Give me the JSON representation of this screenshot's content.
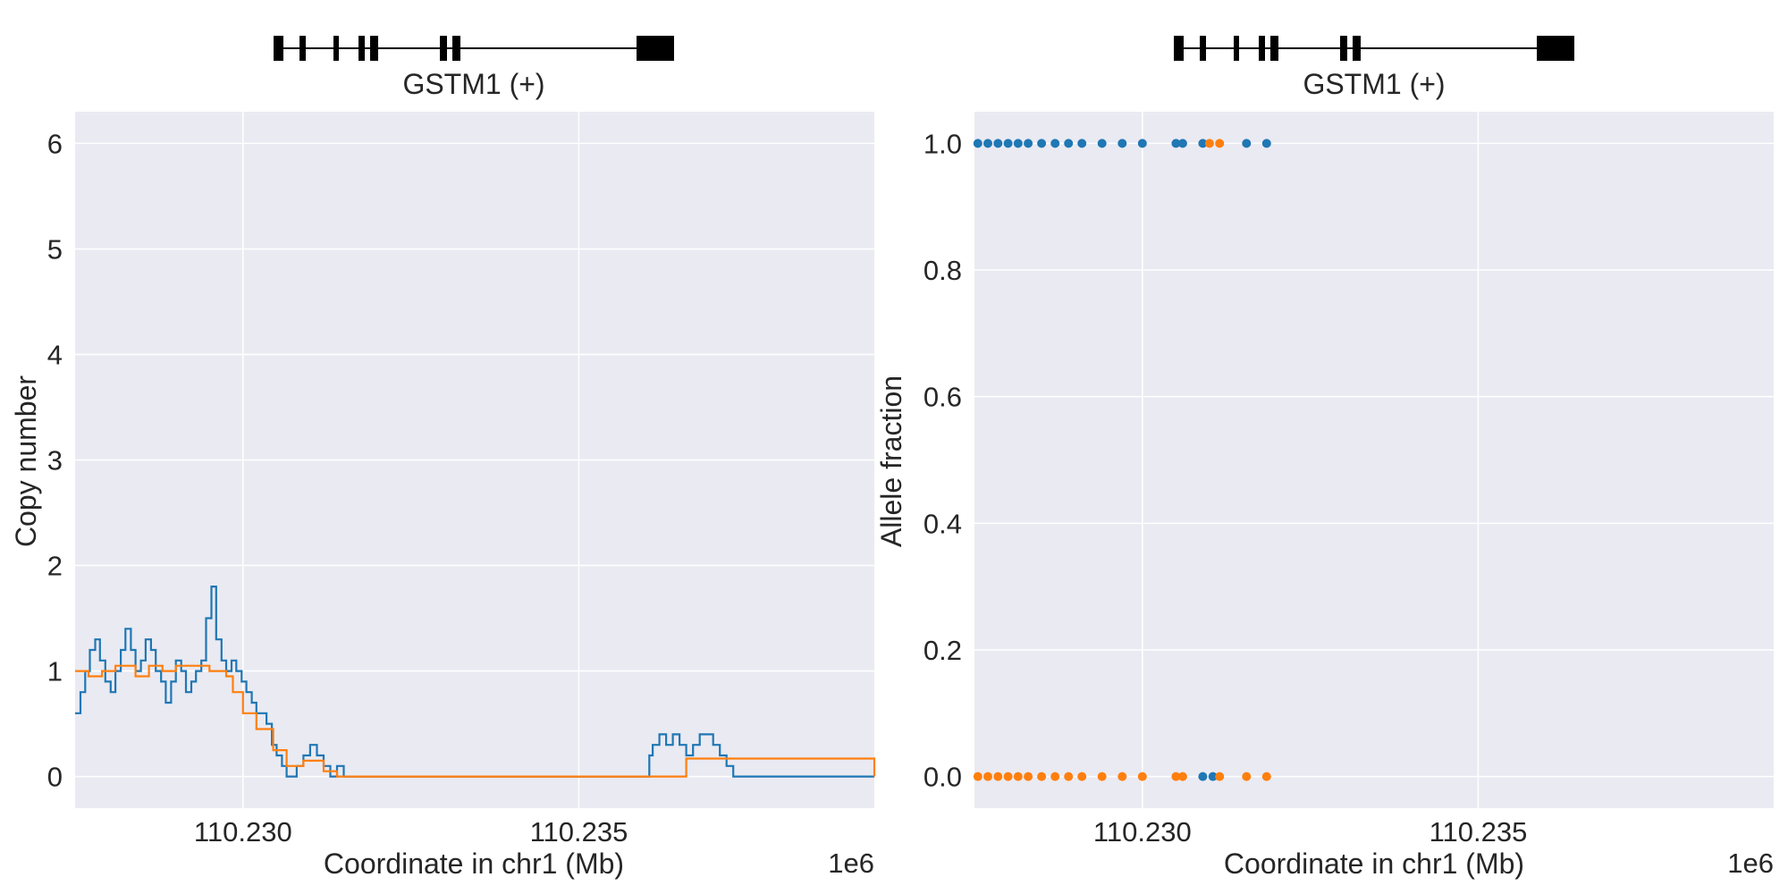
{
  "chart_data": [
    {
      "type": "line",
      "gene": {
        "label": "GSTM1 (+)"
      },
      "xlabel": "Coordinate in chr1 (Mb)",
      "ylabel": "Copy number",
      "x_offset_label": "1e6",
      "xlim": [
        110.2275,
        110.2394
      ],
      "ylim": [
        -0.3,
        6.3
      ],
      "x_ticks": [
        110.23,
        110.235
      ],
      "x_tick_labels": [
        "110.230",
        "110.235"
      ],
      "y_ticks": [
        0,
        1,
        2,
        3,
        4,
        5,
        6
      ],
      "y_tick_labels": [
        "0",
        "1",
        "2",
        "3",
        "4",
        "5",
        "6"
      ],
      "grid": true,
      "series": [
        {
          "color": "#1f77b4",
          "step": true,
          "x": [
            110.2275,
            110.22758,
            110.22765,
            110.22772,
            110.2278,
            110.22787,
            110.22795,
            110.22803,
            110.2281,
            110.22818,
            110.22825,
            110.22833,
            110.2284,
            110.22848,
            110.22855,
            110.22863,
            110.2287,
            110.22878,
            110.22885,
            110.22893,
            110.229,
            110.22908,
            110.22915,
            110.22923,
            110.2293,
            110.22938,
            110.22945,
            110.22953,
            110.2296,
            110.22968,
            110.22975,
            110.22983,
            110.2299,
            110.22998,
            110.23005,
            110.23013,
            110.2302,
            110.23028,
            110.23035,
            110.23043,
            110.2305,
            110.23058,
            110.23065,
            110.23073,
            110.2308,
            110.2309,
            110.231,
            110.2311,
            110.2312,
            110.2313,
            110.2314,
            110.2315,
            110.2316,
            110.2317,
            110.2318,
            110.2319,
            110.232,
            110.23205,
            110.2326,
            110.236,
            110.23605,
            110.2361,
            110.2362,
            110.2363,
            110.2364,
            110.2365,
            110.2366,
            110.2367,
            110.2368,
            110.2369,
            110.237,
            110.2371,
            110.2372,
            110.2373,
            110.2374,
            110.238,
            110.2394
          ],
          "y": [
            0.6,
            0.8,
            1.0,
            1.2,
            1.3,
            1.1,
            0.9,
            0.8,
            1.0,
            1.2,
            1.4,
            1.2,
            1.0,
            1.1,
            1.3,
            1.2,
            1.0,
            0.9,
            0.7,
            0.9,
            1.1,
            1.0,
            0.8,
            0.9,
            1.0,
            1.1,
            1.5,
            1.8,
            1.3,
            1.1,
            1.0,
            1.1,
            1.0,
            0.9,
            0.8,
            0.7,
            0.6,
            0.6,
            0.5,
            0.3,
            0.2,
            0.1,
            0.0,
            0.0,
            0.1,
            0.2,
            0.3,
            0.2,
            0.1,
            0.0,
            0.1,
            0.0,
            0.0,
            0.0,
            0.0,
            0.0,
            0.0,
            0.0,
            0.0,
            0.0,
            0.2,
            0.3,
            0.4,
            0.3,
            0.4,
            0.3,
            0.2,
            0.3,
            0.4,
            0.4,
            0.3,
            0.2,
            0.1,
            0.0,
            0.0,
            0.0,
            0.0
          ]
        },
        {
          "color": "#ff7f0e",
          "step": true,
          "x": [
            110.2275,
            110.2277,
            110.2279,
            110.2281,
            110.2284,
            110.2286,
            110.2288,
            110.229,
            110.2292,
            110.2295,
            110.22975,
            110.22985,
            110.23,
            110.2302,
            110.23045,
            110.23065,
            110.2309,
            110.2312,
            110.2314,
            110.2359,
            110.2366,
            110.2394
          ],
          "y": [
            1.0,
            0.95,
            1.0,
            1.05,
            0.95,
            1.05,
            1.0,
            1.05,
            1.05,
            1.0,
            0.95,
            0.8,
            0.6,
            0.45,
            0.25,
            0.1,
            0.15,
            0.05,
            0.0,
            0.0,
            0.17,
            0.0
          ]
        }
      ]
    },
    {
      "type": "scatter",
      "gene": {
        "label": "GSTM1 (+)"
      },
      "xlabel": "Coordinate in chr1 (Mb)",
      "ylabel": "Allele fraction",
      "x_offset_label": "1e6",
      "xlim": [
        110.2275,
        110.2394
      ],
      "ylim": [
        -0.05,
        1.05
      ],
      "x_ticks": [
        110.23,
        110.235
      ],
      "x_tick_labels": [
        "110.230",
        "110.235"
      ],
      "y_ticks": [
        0.0,
        0.2,
        0.4,
        0.6,
        0.8,
        1.0
      ],
      "y_tick_labels": [
        "0.0",
        "0.2",
        "0.4",
        "0.6",
        "0.8",
        "1.0"
      ],
      "grid": true,
      "series": [
        {
          "color": "#1f77b4",
          "points": [
            [
              110.22755,
              1.0
            ],
            [
              110.2277,
              1.0
            ],
            [
              110.22785,
              1.0
            ],
            [
              110.228,
              1.0
            ],
            [
              110.22815,
              1.0
            ],
            [
              110.2283,
              1.0
            ],
            [
              110.2285,
              1.0
            ],
            [
              110.2287,
              1.0
            ],
            [
              110.2289,
              1.0
            ],
            [
              110.2291,
              1.0
            ],
            [
              110.2294,
              1.0
            ],
            [
              110.2297,
              1.0
            ],
            [
              110.23,
              1.0
            ],
            [
              110.2305,
              1.0
            ],
            [
              110.2306,
              1.0
            ],
            [
              110.2309,
              1.0
            ],
            [
              110.23155,
              1.0
            ],
            [
              110.23185,
              1.0
            ],
            [
              110.2309,
              0.0
            ],
            [
              110.23105,
              0.0
            ]
          ]
        },
        {
          "color": "#ff7f0e",
          "points": [
            [
              110.22755,
              0.0
            ],
            [
              110.2277,
              0.0
            ],
            [
              110.22785,
              0.0
            ],
            [
              110.228,
              0.0
            ],
            [
              110.22815,
              0.0
            ],
            [
              110.2283,
              0.0
            ],
            [
              110.2285,
              0.0
            ],
            [
              110.2287,
              0.0
            ],
            [
              110.2289,
              0.0
            ],
            [
              110.2291,
              0.0
            ],
            [
              110.2294,
              0.0
            ],
            [
              110.2297,
              0.0
            ],
            [
              110.23,
              0.0
            ],
            [
              110.2305,
              0.0
            ],
            [
              110.2306,
              0.0
            ],
            [
              110.23115,
              0.0
            ],
            [
              110.23155,
              0.0
            ],
            [
              110.23185,
              0.0
            ],
            [
              110.231,
              1.0
            ],
            [
              110.23115,
              1.0
            ]
          ]
        }
      ]
    }
  ]
}
